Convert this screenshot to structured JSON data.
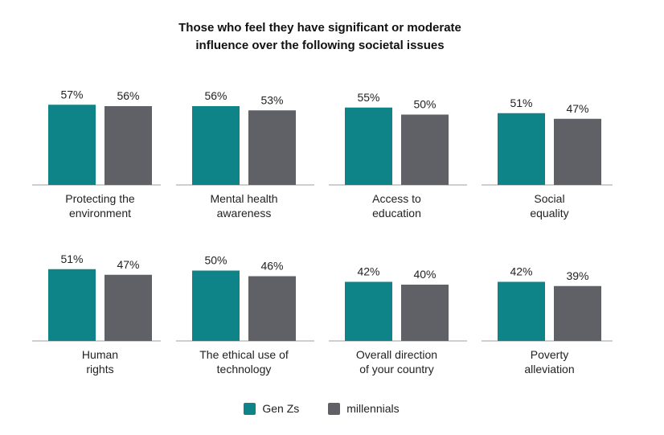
{
  "chart_data": {
    "type": "bar",
    "title_line1": "Those who feel they have significant or moderate",
    "title_line2": "influence over the following societal issues",
    "xlabel": "",
    "ylabel": "",
    "ylim": [
      0,
      60
    ],
    "grid": false,
    "legend_position": "bottom-center",
    "value_suffix": "%",
    "series": [
      {
        "name": "Gen Zs",
        "color": "#0E8489"
      },
      {
        "name": "millennials",
        "color": "#5F6166"
      }
    ],
    "categories": [
      {
        "label_lines": [
          "Protecting the",
          "environment"
        ],
        "values": [
          57,
          56
        ]
      },
      {
        "label_lines": [
          "Mental health",
          "awareness"
        ],
        "values": [
          56,
          53
        ]
      },
      {
        "label_lines": [
          "Access to",
          "education"
        ],
        "values": [
          55,
          50
        ]
      },
      {
        "label_lines": [
          "Social",
          "equality"
        ],
        "values": [
          51,
          47
        ]
      },
      {
        "label_lines": [
          "Human",
          "rights"
        ],
        "values": [
          51,
          47
        ]
      },
      {
        "label_lines": [
          "The ethical use of",
          "technology"
        ],
        "values": [
          50,
          46
        ]
      },
      {
        "label_lines": [
          "Overall direction",
          "of your country"
        ],
        "values": [
          42,
          40
        ]
      },
      {
        "label_lines": [
          "Poverty",
          "alleviation"
        ],
        "values": [
          42,
          39
        ]
      }
    ]
  }
}
